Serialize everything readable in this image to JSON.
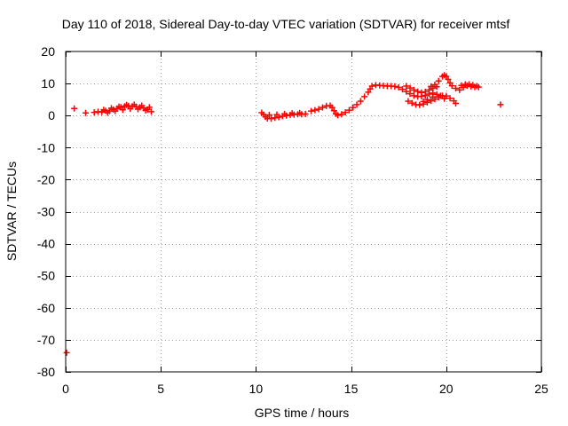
{
  "chart_data": {
    "type": "scatter",
    "title": "Day 110 of 2018, Sidereal Day-to-day VTEC variation (SDTVAR) for receiver mtsf",
    "xlabel": "GPS time / hours",
    "ylabel": "SDTVAR / TECUs",
    "xlim": [
      0,
      25
    ],
    "ylim": [
      -80,
      20
    ],
    "xticks": [
      0,
      5,
      10,
      15,
      20,
      25
    ],
    "yticks": [
      -80,
      -70,
      -60,
      -50,
      -40,
      -30,
      -20,
      -10,
      0,
      10,
      20
    ],
    "grid": true,
    "marker": "+",
    "color": "#ff0000",
    "points": [
      [
        0.05,
        -74
      ],
      [
        0.45,
        2.2
      ],
      [
        1.05,
        0.8
      ],
      [
        1.5,
        1.0
      ],
      [
        1.7,
        1.2
      ],
      [
        1.9,
        1.1
      ],
      [
        2.1,
        1.5
      ],
      [
        2.3,
        1.4
      ],
      [
        2.5,
        1.9
      ],
      [
        2.7,
        2.2
      ],
      [
        2.9,
        2.6
      ],
      [
        3.1,
        2.9
      ],
      [
        3.3,
        3.0
      ],
      [
        3.5,
        2.9
      ],
      [
        3.7,
        2.8
      ],
      [
        3.9,
        2.6
      ],
      [
        4.1,
        2.3
      ],
      [
        4.3,
        1.9
      ],
      [
        4.5,
        1.2
      ],
      [
        2.0,
        1.8
      ],
      [
        2.4,
        2.3
      ],
      [
        2.8,
        2.8
      ],
      [
        3.2,
        3.3
      ],
      [
        3.6,
        3.4
      ],
      [
        4.0,
        3.1
      ],
      [
        4.4,
        2.6
      ],
      [
        2.2,
        0.9
      ],
      [
        2.6,
        1.4
      ],
      [
        3.0,
        1.8
      ],
      [
        3.4,
        2.1
      ],
      [
        3.8,
        2.0
      ],
      [
        4.2,
        1.6
      ],
      [
        10.3,
        0.9
      ],
      [
        10.4,
        0.3
      ],
      [
        10.5,
        -0.4
      ],
      [
        10.6,
        -0.9
      ],
      [
        10.8,
        -1.0
      ],
      [
        11.0,
        -0.7
      ],
      [
        11.2,
        -0.5
      ],
      [
        11.4,
        -0.2
      ],
      [
        11.6,
        0.0
      ],
      [
        11.8,
        0.2
      ],
      [
        12.0,
        0.3
      ],
      [
        12.2,
        0.4
      ],
      [
        12.4,
        0.4
      ],
      [
        12.6,
        0.5
      ],
      [
        10.7,
        0.2
      ],
      [
        11.1,
        0.3
      ],
      [
        11.5,
        0.5
      ],
      [
        11.9,
        0.7
      ],
      [
        12.3,
        0.8
      ],
      [
        12.9,
        1.4
      ],
      [
        13.1,
        1.7
      ],
      [
        13.3,
        2.0
      ],
      [
        13.5,
        2.5
      ],
      [
        13.7,
        3.0
      ],
      [
        13.9,
        3.1
      ],
      [
        14.0,
        2.5
      ],
      [
        14.1,
        1.5
      ],
      [
        14.2,
        0.5
      ],
      [
        14.3,
        0.1
      ],
      [
        14.5,
        0.4
      ],
      [
        14.7,
        1.0
      ],
      [
        14.9,
        1.7
      ],
      [
        15.1,
        2.5
      ],
      [
        15.3,
        3.4
      ],
      [
        15.5,
        4.5
      ],
      [
        15.7,
        5.9
      ],
      [
        15.9,
        7.3
      ],
      [
        16.0,
        8.3
      ],
      [
        16.1,
        9.2
      ],
      [
        16.3,
        9.5
      ],
      [
        16.5,
        9.4
      ],
      [
        16.7,
        9.3
      ],
      [
        16.9,
        9.2
      ],
      [
        17.1,
        9.2
      ],
      [
        17.3,
        9.1
      ],
      [
        17.5,
        8.8
      ],
      [
        17.7,
        8.2
      ],
      [
        17.9,
        7.5
      ],
      [
        18.1,
        6.8
      ],
      [
        18.3,
        6.2
      ],
      [
        18.5,
        5.9
      ],
      [
        18.7,
        6.0
      ],
      [
        18.9,
        6.3
      ],
      [
        19.1,
        6.7
      ],
      [
        19.3,
        7.0
      ],
      [
        17.9,
        9.2
      ],
      [
        18.1,
        8.6
      ],
      [
        18.3,
        8.0
      ],
      [
        18.5,
        7.5
      ],
      [
        18.7,
        7.2
      ],
      [
        18.9,
        7.4
      ],
      [
        19.1,
        8.0
      ],
      [
        19.3,
        8.5
      ],
      [
        19.5,
        9.0
      ],
      [
        18.0,
        4.5
      ],
      [
        18.2,
        3.9
      ],
      [
        18.4,
        3.4
      ],
      [
        18.6,
        3.3
      ],
      [
        18.8,
        3.6
      ],
      [
        19.0,
        4.1
      ],
      [
        19.2,
        4.6
      ],
      [
        19.4,
        5.1
      ],
      [
        19.6,
        5.7
      ],
      [
        19.8,
        6.2
      ],
      [
        20.0,
        6.1
      ],
      [
        20.2,
        5.4
      ],
      [
        20.4,
        4.6
      ],
      [
        20.5,
        3.8
      ],
      [
        18.8,
        4.4
      ],
      [
        19.0,
        5.0
      ],
      [
        19.3,
        5.8
      ],
      [
        19.5,
        6.6
      ],
      [
        19.7,
        6.2
      ],
      [
        19.9,
        5.3
      ],
      [
        19.2,
        9.1
      ],
      [
        19.4,
        9.6
      ],
      [
        19.6,
        10.8
      ],
      [
        19.8,
        12.2
      ],
      [
        19.9,
        12.6
      ],
      [
        20.0,
        12.2
      ],
      [
        20.1,
        11.3
      ],
      [
        20.2,
        10.2
      ],
      [
        20.3,
        9.3
      ],
      [
        20.5,
        8.5
      ],
      [
        20.7,
        8.0
      ],
      [
        20.9,
        8.8
      ],
      [
        21.1,
        9.3
      ],
      [
        21.3,
        9.1
      ],
      [
        21.5,
        8.9
      ],
      [
        21.7,
        8.9
      ],
      [
        20.8,
        9.4
      ],
      [
        21.0,
        9.7
      ],
      [
        21.2,
        9.8
      ],
      [
        21.4,
        9.5
      ],
      [
        21.6,
        9.2
      ],
      [
        22.85,
        3.4
      ]
    ]
  }
}
